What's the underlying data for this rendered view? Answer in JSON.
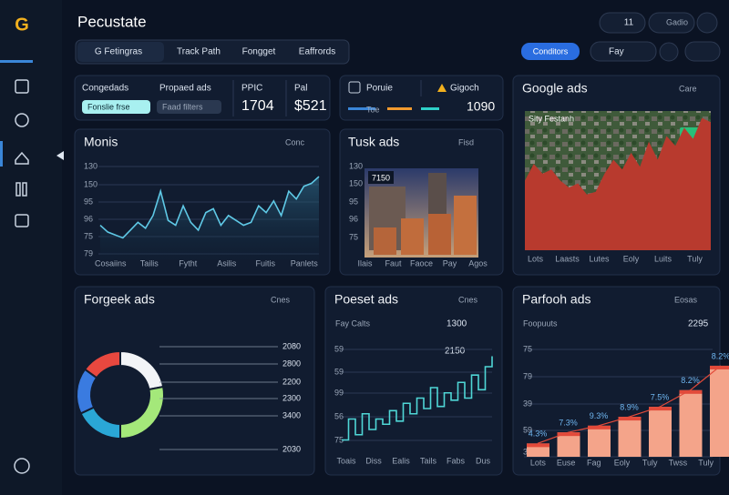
{
  "logo": "G",
  "header": {
    "title": "Pecustate",
    "button_count": "11",
    "button_user": "Gadio"
  },
  "tabs": [
    "G Fetingras",
    "Track Path",
    "Fongget",
    "Eaffrords"
  ],
  "toolbar": {
    "primary": "Conditors",
    "select": "Fay"
  },
  "summary": {
    "label1": "Congedads",
    "label2": "Propaed ads",
    "chip1": "Fonslie frse",
    "chip2": "Faad filters",
    "metric1_label": "PPIC",
    "metric1_value": "1704",
    "metric2_label": "Pal",
    "metric2_value": "$521"
  },
  "source": {
    "label": "Poruie",
    "select": "Gigoch",
    "bar_label": "Toe",
    "value": "1090"
  },
  "google_ads": {
    "title": "Google ads",
    "menu": "Care",
    "image_label": "Sity Festanh",
    "categories": [
      "Lots",
      "Laasts",
      "Lutes",
      "Eoly",
      "Luits",
      "Tuly"
    ],
    "values": [
      50,
      62,
      55,
      58,
      50,
      45,
      48,
      40,
      42,
      55,
      65,
      58,
      70,
      60,
      78,
      65,
      82,
      75,
      88,
      80,
      95,
      92
    ],
    "ylim": [
      0,
      100
    ],
    "color": "#b83a2e"
  },
  "monis": {
    "title": "Monis",
    "menu": "Conc",
    "ylabels": [
      "130",
      "150",
      "95",
      "96",
      "75",
      "79"
    ],
    "categories": [
      "Cosaiins",
      "Tailis",
      "Fytht",
      "Asilis",
      "Fuitis",
      "Panlets"
    ],
    "values": [
      35,
      28,
      25,
      22,
      30,
      38,
      32,
      45,
      70,
      40,
      35,
      55,
      38,
      30,
      48,
      52,
      35,
      45,
      40,
      35,
      38,
      55,
      48,
      60,
      45,
      70,
      62,
      75,
      78,
      85
    ],
    "ylim": [
      0,
      100
    ],
    "color": "#5fc9e6"
  },
  "tusk_ads": {
    "title": "Tusk ads",
    "menu": "Fisd",
    "image_label": "7150",
    "ylabels": [
      "130",
      "150",
      "95",
      "96",
      "75"
    ],
    "categories": [
      "Ilais",
      "Faut",
      "Faoce",
      "Pay",
      "Agos"
    ]
  },
  "forgeek_ads": {
    "title": "Forgeek ads",
    "menu": "Cnes",
    "labels": [
      "2080",
      "2800",
      "2200",
      "2300",
      "3400",
      "2030"
    ],
    "segments": [
      {
        "value": 22,
        "color": "#f2f4f7"
      },
      {
        "value": 28,
        "color": "#a4e87a"
      },
      {
        "value": 18,
        "color": "#2aa7d6"
      },
      {
        "value": 17,
        "color": "#3a7be0"
      },
      {
        "value": 15,
        "color": "#e8483f"
      }
    ]
  },
  "poeset_ads": {
    "title": "Poeset ads",
    "menu": "Cnes",
    "subtitle": "Fay Calts",
    "total": "1300",
    "annotation": "2150",
    "ylabels": [
      "59",
      "59",
      "99",
      "56",
      "75"
    ],
    "categories": [
      "Toais",
      "Diss",
      "Ealis",
      "Tails",
      "Fabs",
      "Dus"
    ],
    "values": [
      10,
      30,
      15,
      35,
      20,
      30,
      25,
      38,
      28,
      45,
      35,
      50,
      40,
      60,
      42,
      55,
      48,
      65,
      50,
      72,
      58,
      80,
      90
    ],
    "ylim": [
      0,
      100
    ],
    "color": "#4fd6d6"
  },
  "parfooh_ads": {
    "title": "Parfooh ads",
    "menu": "Eosas",
    "subtitle": "Foopuuts",
    "total": "2295",
    "ylabels": [
      "75",
      "79",
      "39",
      "59",
      "39"
    ],
    "categories": [
      "Lots",
      "Euse",
      "Fag",
      "Eoly",
      "Tuly",
      "Twss",
      "Tuly"
    ],
    "values": [
      12,
      22,
      28,
      36,
      45,
      60,
      82
    ],
    "ylim": [
      0,
      100
    ],
    "color": "#f4a48a",
    "bar_annotations": [
      "4.3%",
      "7.3%",
      "9.3%",
      "8.9%",
      "7.5%",
      "8.2%",
      "8.2%"
    ]
  }
}
